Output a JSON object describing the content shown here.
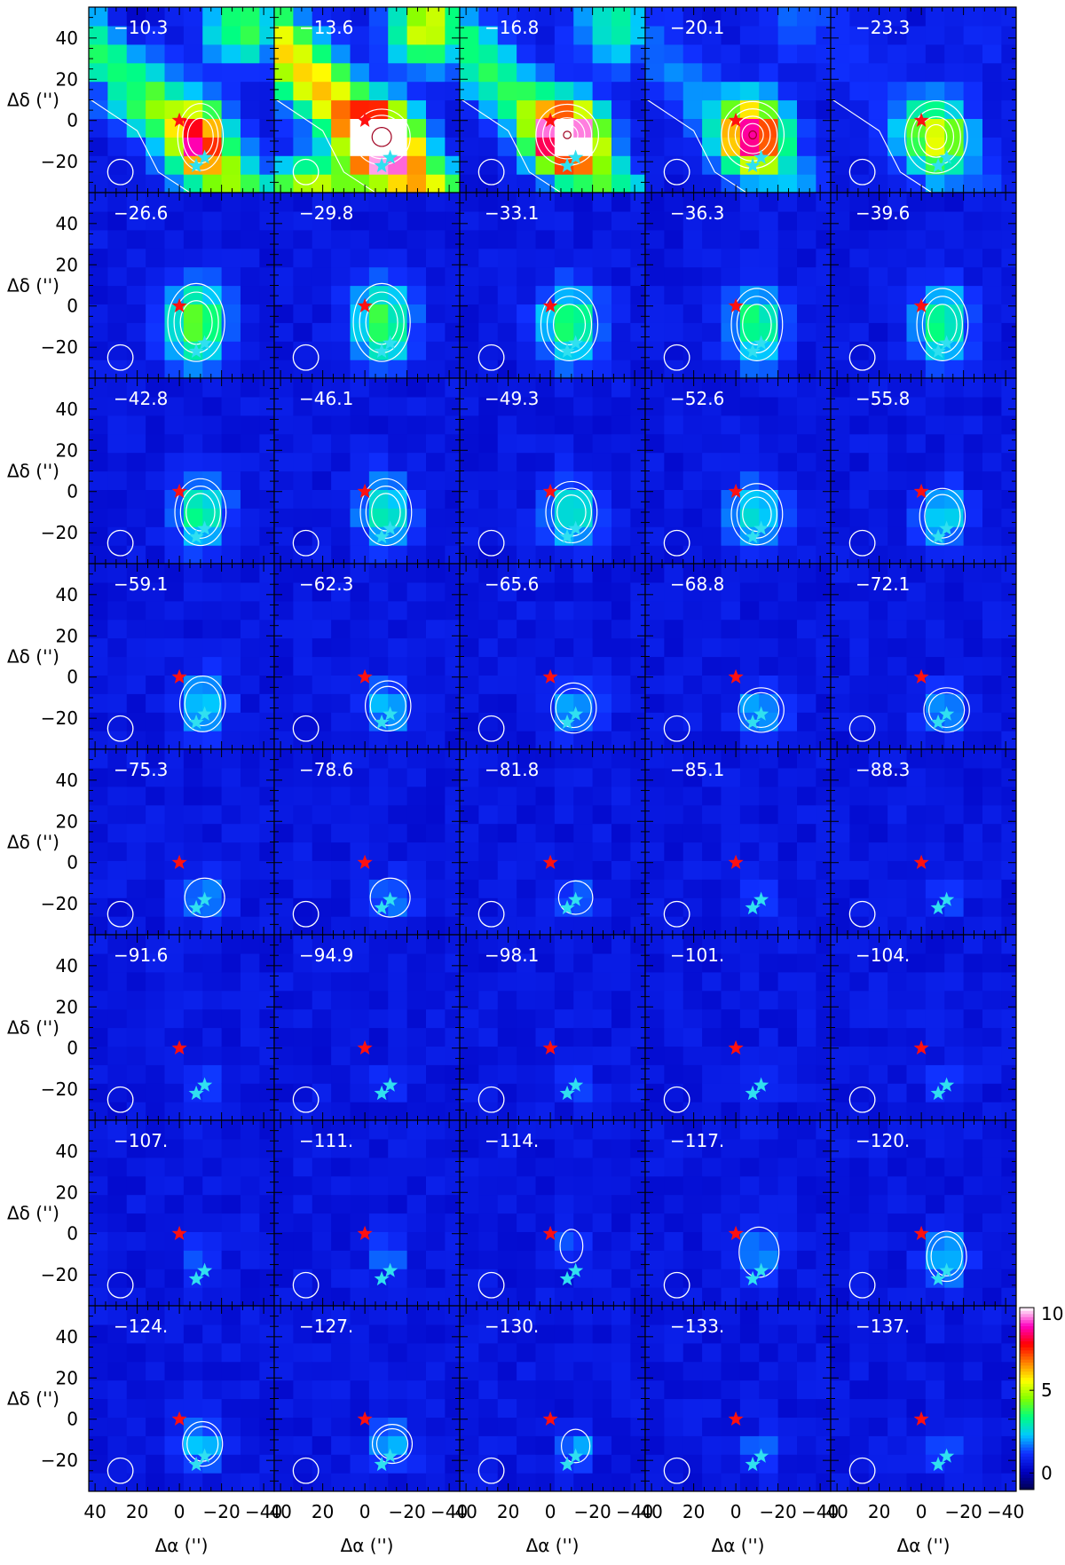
{
  "chart_data": {
    "type": "heatmap",
    "layout": "channel-map grid, 5 columns x 8 rows",
    "xlabel": "Δα ('')",
    "ylabel": "Δδ ('')",
    "x_ticks": [
      "40",
      "20",
      "0",
      "−20",
      "−40"
    ],
    "y_ticks": [
      "40",
      "20",
      "0",
      "−20"
    ],
    "xlim": [
      43,
      -45
    ],
    "ylim": [
      -35,
      55
    ],
    "colorbar": {
      "ticks": [
        "0",
        "5",
        "10"
      ],
      "range": [
        -1,
        10
      ],
      "colormap": [
        "#000050",
        "#0000c0",
        "#1030ff",
        "#00c8ff",
        "#00ff80",
        "#80ff00",
        "#ffff00",
        "#ff8000",
        "#ff0000",
        "#ff00c0",
        "#ffffff"
      ]
    },
    "markers": {
      "red_star": {
        "x": 0,
        "y": 0,
        "color": "#ff1010"
      },
      "cyan_stars": [
        {
          "x": -12,
          "y": -18
        },
        {
          "x": -8,
          "y": -22
        }
      ],
      "cyan_color": "#30e0f0"
    },
    "beam": {
      "x": 28,
      "y": -25,
      "radius": 6
    },
    "panels": [
      {
        "label": "−10.3",
        "peak": 5.0,
        "cx": -10,
        "cy": -8,
        "sx": 8,
        "sy": 12,
        "contours": 3
      },
      {
        "label": "−13.6",
        "peak": 10.0,
        "cx": -8,
        "cy": -8,
        "sx": 10,
        "sy": 10,
        "contours": 4
      },
      {
        "label": "−16.8",
        "peak": 9.5,
        "cx": -8,
        "cy": -7,
        "sx": 11,
        "sy": 11,
        "contours": 5
      },
      {
        "label": "−20.1",
        "peak": 7.5,
        "cx": -8,
        "cy": -7,
        "sx": 11,
        "sy": 12,
        "contours": 5
      },
      {
        "label": "−23.3",
        "peak": 4.5,
        "cx": -7,
        "cy": -8,
        "sx": 11,
        "sy": 13,
        "contours": 4
      },
      {
        "label": "−26.6",
        "peak": 3.8,
        "cx": -8,
        "cy": -8,
        "sx": 10,
        "sy": 14,
        "contours": 3
      },
      {
        "label": "−29.8",
        "peak": 3.5,
        "cx": -8,
        "cy": -8,
        "sx": 10,
        "sy": 14,
        "contours": 3
      },
      {
        "label": "−33.1",
        "peak": 3.3,
        "cx": -9,
        "cy": -9,
        "sx": 10,
        "sy": 13,
        "contours": 3
      },
      {
        "label": "−36.3",
        "peak": 3.2,
        "cx": -10,
        "cy": -9,
        "sx": 9,
        "sy": 13,
        "contours": 3
      },
      {
        "label": "−39.6",
        "peak": 3.0,
        "cx": -10,
        "cy": -9,
        "sx": 9,
        "sy": 13,
        "contours": 3
      },
      {
        "label": "−42.8",
        "peak": 2.8,
        "cx": -10,
        "cy": -10,
        "sx": 9,
        "sy": 12,
        "contours": 3
      },
      {
        "label": "−46.1",
        "peak": 2.6,
        "cx": -10,
        "cy": -10,
        "sx": 9,
        "sy": 12,
        "contours": 3
      },
      {
        "label": "−49.3",
        "peak": 2.5,
        "cx": -10,
        "cy": -10,
        "sx": 9,
        "sy": 11,
        "contours": 3
      },
      {
        "label": "−52.6",
        "peak": 2.4,
        "cx": -10,
        "cy": -11,
        "sx": 9,
        "sy": 11,
        "contours": 3
      },
      {
        "label": "−55.8",
        "peak": 2.2,
        "cx": -10,
        "cy": -12,
        "sx": 8,
        "sy": 10,
        "contours": 2
      },
      {
        "label": "−59.1",
        "peak": 2.0,
        "cx": -11,
        "cy": -13,
        "sx": 8,
        "sy": 10,
        "contours": 2
      },
      {
        "label": "−62.3",
        "peak": 1.9,
        "cx": -11,
        "cy": -14,
        "sx": 8,
        "sy": 9,
        "contours": 2
      },
      {
        "label": "−65.6",
        "peak": 1.8,
        "cx": -11,
        "cy": -15,
        "sx": 8,
        "sy": 9,
        "contours": 2
      },
      {
        "label": "−68.8",
        "peak": 1.7,
        "cx": -12,
        "cy": -16,
        "sx": 8,
        "sy": 8,
        "contours": 2
      },
      {
        "label": "−72.1",
        "peak": 1.6,
        "cx": -12,
        "cy": -16,
        "sx": 8,
        "sy": 8,
        "contours": 2
      },
      {
        "label": "−75.3",
        "peak": 1.5,
        "cx": -12,
        "cy": -17,
        "sx": 7,
        "sy": 7,
        "contours": 1
      },
      {
        "label": "−78.6",
        "peak": 1.4,
        "cx": -12,
        "cy": -17,
        "sx": 7,
        "sy": 7,
        "contours": 1
      },
      {
        "label": "−81.8",
        "peak": 1.3,
        "cx": -12,
        "cy": -17,
        "sx": 6,
        "sy": 6,
        "contours": 1
      },
      {
        "label": "−85.1",
        "peak": 1.0,
        "cx": -12,
        "cy": -17,
        "sx": 6,
        "sy": 6,
        "contours": 0
      },
      {
        "label": "−88.3",
        "peak": 0.9,
        "cx": -12,
        "cy": -17,
        "sx": 6,
        "sy": 6,
        "contours": 0
      },
      {
        "label": "−91.6",
        "peak": 0.8,
        "cx": -12,
        "cy": -17,
        "sx": 6,
        "sy": 6,
        "contours": 0
      },
      {
        "label": "−94.9",
        "peak": 0.8,
        "cx": -12,
        "cy": -17,
        "sx": 6,
        "sy": 6,
        "contours": 0
      },
      {
        "label": "−98.1",
        "peak": 0.8,
        "cx": -12,
        "cy": -17,
        "sx": 6,
        "sy": 6,
        "contours": 0
      },
      {
        "label": "−101.",
        "peak": 0.8,
        "cx": -12,
        "cy": -17,
        "sx": 6,
        "sy": 6,
        "contours": 0
      },
      {
        "label": "−104.",
        "peak": 0.9,
        "cx": -12,
        "cy": -15,
        "sx": 6,
        "sy": 7,
        "contours": 0
      },
      {
        "label": "−107.",
        "peak": 1.0,
        "cx": -10,
        "cy": -10,
        "sx": 6,
        "sy": 8,
        "contours": 0
      },
      {
        "label": "−111.",
        "peak": 1.1,
        "cx": -10,
        "cy": -10,
        "sx": 6,
        "sy": 8,
        "contours": 0
      },
      {
        "label": "−114.",
        "peak": 1.3,
        "cx": -10,
        "cy": -6,
        "sx": 4,
        "sy": 6,
        "contours": 1
      },
      {
        "label": "−117.",
        "peak": 1.6,
        "cx": -11,
        "cy": -9,
        "sx": 7,
        "sy": 9,
        "contours": 1
      },
      {
        "label": "−120.",
        "peak": 1.9,
        "cx": -12,
        "cy": -11,
        "sx": 7,
        "sy": 9,
        "contours": 2
      },
      {
        "label": "−124.",
        "peak": 2.0,
        "cx": -11,
        "cy": -12,
        "sx": 7,
        "sy": 8,
        "contours": 2
      },
      {
        "label": "−127.",
        "peak": 1.9,
        "cx": -13,
        "cy": -12,
        "sx": 7,
        "sy": 7,
        "contours": 2
      },
      {
        "label": "−130.",
        "peak": 1.6,
        "cx": -12,
        "cy": -13,
        "sx": 5,
        "sy": 6,
        "contours": 1
      },
      {
        "label": "−133.",
        "peak": 1.2,
        "cx": -12,
        "cy": -15,
        "sx": 6,
        "sy": 6,
        "contours": 0
      },
      {
        "label": "−137.",
        "peak": 1.0,
        "cx": -12,
        "cy": -15,
        "sx": 6,
        "sy": 6,
        "contours": 0
      }
    ]
  }
}
